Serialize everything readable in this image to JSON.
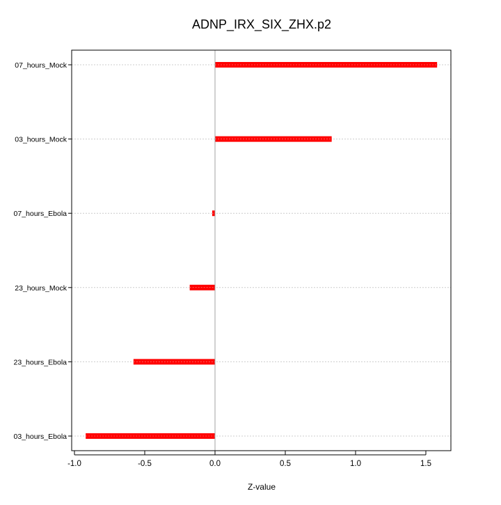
{
  "chart_data": {
    "type": "bar",
    "orientation": "horizontal",
    "title": "ADNP_IRX_SIX_ZHX.p2",
    "xlabel": "Z-value",
    "ylabel": "",
    "categories": [
      "07_hours_Mock",
      "03_hours_Mock",
      "07_hours_Ebola",
      "23_hours_Mock",
      "23_hours_Ebola",
      "03_hours_Ebola"
    ],
    "values": [
      1.58,
      0.83,
      -0.02,
      -0.18,
      -0.58,
      -0.92
    ],
    "xlim": [
      -1.02,
      1.67
    ],
    "xticks": [
      -1.0,
      -0.5,
      0.0,
      0.5,
      1.0,
      1.5
    ],
    "xtick_labels": [
      "-1.0",
      "-0.5",
      "0.0",
      "0.5",
      "1.0",
      "1.5"
    ],
    "grid": "horizontal dotted per category",
    "legend": "none",
    "bar_color": "#ff0000",
    "zero_line_color": "#a0a0a0"
  }
}
